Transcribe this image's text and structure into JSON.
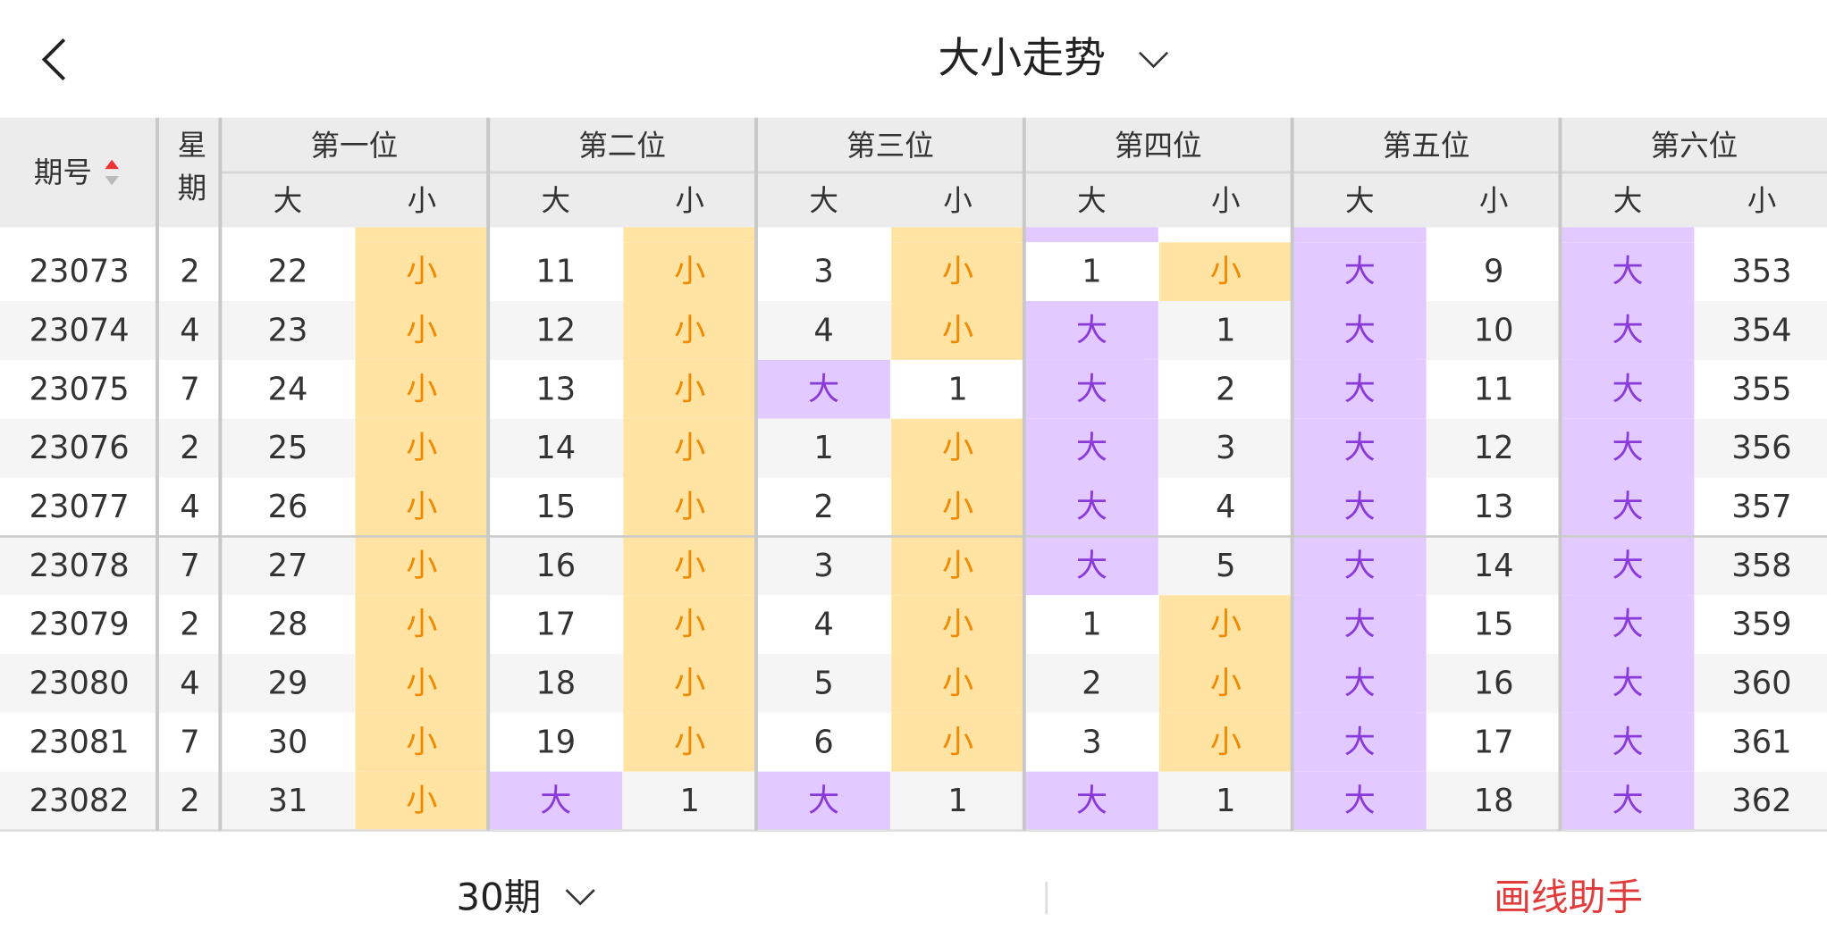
{
  "header": {
    "title": "大小走势"
  },
  "table": {
    "issue_header": "期号",
    "weekday_header": "星期",
    "groups": [
      "第一位",
      "第二位",
      "第三位",
      "第四位",
      "第五位",
      "第六位"
    ],
    "sub_headers": [
      "大",
      "小"
    ],
    "rows": [
      {
        "issue": 23073,
        "weekday": 2,
        "cells": [
          22,
          "小",
          11,
          "小",
          3,
          "小",
          1,
          "小",
          "大",
          9,
          "大",
          353
        ]
      },
      {
        "issue": 23074,
        "weekday": 4,
        "cells": [
          23,
          "小",
          12,
          "小",
          4,
          "小",
          "大",
          1,
          "大",
          10,
          "大",
          354
        ]
      },
      {
        "issue": 23075,
        "weekday": 7,
        "cells": [
          24,
          "小",
          13,
          "小",
          "大",
          1,
          "大",
          2,
          "大",
          11,
          "大",
          355
        ]
      },
      {
        "issue": 23076,
        "weekday": 2,
        "cells": [
          25,
          "小",
          14,
          "小",
          1,
          "小",
          "大",
          3,
          "大",
          12,
          "大",
          356
        ]
      },
      {
        "issue": 23077,
        "weekday": 4,
        "cells": [
          26,
          "小",
          15,
          "小",
          2,
          "小",
          "大",
          4,
          "大",
          13,
          "大",
          357
        ]
      },
      {
        "issue": 23078,
        "weekday": 7,
        "cells": [
          27,
          "小",
          16,
          "小",
          3,
          "小",
          "大",
          5,
          "大",
          14,
          "大",
          358
        ]
      },
      {
        "issue": 23079,
        "weekday": 2,
        "cells": [
          28,
          "小",
          17,
          "小",
          4,
          "小",
          1,
          "小",
          "大",
          15,
          "大",
          359
        ]
      },
      {
        "issue": 23080,
        "weekday": 4,
        "cells": [
          29,
          "小",
          18,
          "小",
          5,
          "小",
          2,
          "小",
          "大",
          16,
          "大",
          360
        ]
      },
      {
        "issue": 23081,
        "weekday": 7,
        "cells": [
          30,
          "小",
          19,
          "小",
          6,
          "小",
          3,
          "小",
          "大",
          17,
          "大",
          361
        ]
      },
      {
        "issue": 23082,
        "weekday": 2,
        "cells": [
          31,
          "小",
          "大",
          1,
          "大",
          1,
          "大",
          1,
          "大",
          18,
          "大",
          362
        ]
      }
    ]
  },
  "footer": {
    "period": "30期",
    "tool": "画线助手"
  }
}
